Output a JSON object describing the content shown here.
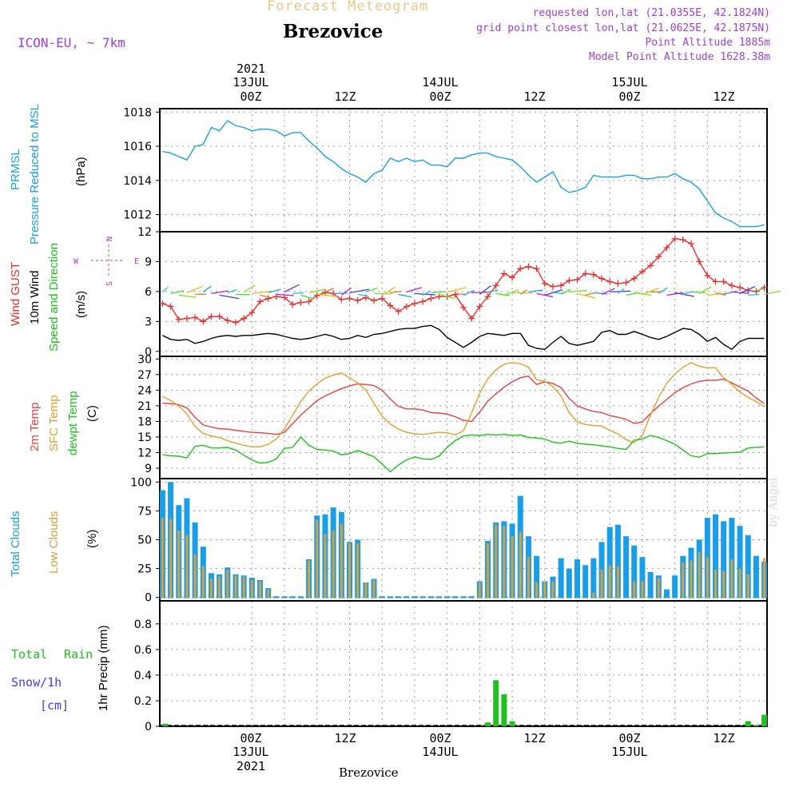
{
  "header": {
    "title": "Forecast Meteogram",
    "place": "Brezovice",
    "model": "ICON-EU, ~ 7km",
    "requested": "requested lon,lat (21.0355E, 42.1824N)",
    "grid": "grid point closest lon,lat (21.0625E, 42.1875N)",
    "altitude": "Point Altitude 1885m",
    "model_altitude": "Model Point Altitude 1628.38m"
  },
  "footer": {
    "place": "Brezovice",
    "credit": "by Angel"
  },
  "time_axis": {
    "labels": [
      "00Z",
      "12Z",
      "00Z",
      "12Z",
      "00Z",
      "12Z"
    ],
    "dates": [
      "13JUL",
      "14JUL",
      "15JUL"
    ],
    "year": "2021"
  },
  "panel_labels": {
    "p1": [
      "PRMSL",
      "Pressure Reduced to MSL",
      "(hPa)"
    ],
    "p2": [
      "Wind GUST",
      "10m Wind",
      "Speed and Direction",
      "(m/s)"
    ],
    "p2_compass": {
      "n": "N",
      "s": "S",
      "e": "E",
      "w": "W"
    },
    "p3": [
      "2m Temp",
      "SFC Temp",
      "dewpt Temp",
      "(C)"
    ],
    "p4": [
      "Total Clouds",
      "Low Clouds",
      "(%)"
    ],
    "p5": [
      "Total",
      "Rain",
      "Snow/1h",
      "[cm]",
      "1hr Precip (mm)"
    ]
  },
  "colors": {
    "pressure": "#1aa0e8",
    "gust": "#e83030",
    "wind": "#000000",
    "temp2m": "#e84040",
    "sfctemp": "#e0a030",
    "dewpt": "#20c020",
    "total_clouds": "#1a9ee8",
    "low_clouds": "#d4a040",
    "rain": "#20c020",
    "snow": "#4040e0",
    "label_purple": "#a040d0"
  },
  "chart_data": [
    {
      "type": "line",
      "title": "",
      "ylabel": "PRMSL Pressure Reduced to MSL (hPa)",
      "ylim": [
        1011,
        1018.2
      ],
      "yticks": [
        1012,
        1014,
        1016,
        1018
      ],
      "grid": true,
      "x": [
        -33,
        -30,
        -27,
        -24,
        -21,
        -18,
        -15,
        -12,
        -9,
        -6,
        -3,
        0,
        3,
        6,
        9,
        12,
        15,
        18,
        21,
        24,
        27,
        30,
        33,
        36,
        39,
        42,
        45,
        48,
        51,
        54,
        57,
        60,
        63,
        66,
        69,
        72,
        75,
        78,
        81,
        84,
        87,
        90,
        93,
        96,
        99,
        102,
        105,
        108,
        111,
        114,
        117,
        120,
        123,
        126,
        129,
        132,
        135,
        138,
        141,
        144,
        147,
        150,
        153,
        156,
        159,
        162,
        165,
        168,
        171,
        174,
        177,
        180,
        183,
        186,
        189
      ],
      "series": [
        {
          "name": "PRMSL",
          "values": [
            1015.7,
            1015.6,
            1015.4,
            1015.2,
            1016.0,
            1016.1,
            1017.1,
            1016.9,
            1017.5,
            1017.2,
            1017.1,
            1016.9,
            1017.0,
            1017.0,
            1016.9,
            1016.6,
            1016.8,
            1016.8,
            1016.3,
            1015.9,
            1015.4,
            1015.1,
            1014.7,
            1014.4,
            1014.2,
            1013.9,
            1014.4,
            1014.6,
            1015.3,
            1015.1,
            1015.3,
            1015.1,
            1015.2,
            1014.9,
            1014.9,
            1014.8,
            1015.3,
            1015.3,
            1015.5,
            1015.6,
            1015.6,
            1015.4,
            1015.3,
            1015.2,
            1014.8,
            1014.3,
            1013.9,
            1014.2,
            1014.5,
            1013.6,
            1013.3,
            1013.4,
            1013.6,
            1014.3,
            1014.2,
            1014.2,
            1014.2,
            1014.3,
            1014.3,
            1014.1,
            1014.1,
            1014.2,
            1014.2,
            1014.4,
            1014.1,
            1013.9,
            1013.5,
            1012.8,
            1012.1,
            1011.8,
            1011.6,
            1011.3,
            1011.3,
            1011.3,
            1011.4
          ]
        }
      ]
    },
    {
      "type": "line",
      "title": "",
      "ylabel": "Wind GUST / 10m Wind Speed and Direction (m/s)",
      "ylim": [
        -0.5,
        12
      ],
      "yticks": [
        0,
        3,
        6,
        9,
        12
      ],
      "grid": true,
      "x": [
        -33,
        -30,
        -27,
        -24,
        -21,
        -18,
        -15,
        -12,
        -9,
        -6,
        -3,
        0,
        3,
        6,
        9,
        12,
        15,
        18,
        21,
        24,
        27,
        30,
        33,
        36,
        39,
        42,
        45,
        48,
        51,
        54,
        57,
        60,
        63,
        66,
        69,
        72,
        75,
        78,
        81,
        84,
        87,
        90,
        93,
        96,
        99,
        102,
        105,
        108,
        111,
        114,
        117,
        120,
        123,
        126,
        129,
        132,
        135,
        138,
        141,
        144,
        147,
        150,
        153,
        156,
        159,
        162,
        165,
        168,
        171,
        174,
        177,
        180,
        183,
        186,
        189
      ],
      "series": [
        {
          "name": "Wind GUST",
          "values": [
            4.8,
            4.5,
            3.2,
            3.3,
            3.4,
            3.0,
            3.5,
            3.5,
            3.1,
            2.9,
            3.3,
            3.9,
            5.0,
            5.3,
            5.5,
            5.4,
            4.7,
            4.9,
            5.0,
            5.6,
            5.9,
            5.8,
            5.2,
            5.3,
            5.1,
            5.4,
            5.1,
            5.3,
            4.6,
            4.0,
            4.5,
            4.8,
            5.0,
            5.3,
            5.5,
            5.5,
            5.7,
            4.4,
            3.3,
            4.5,
            5.5,
            6.6,
            7.8,
            7.4,
            8.3,
            8.5,
            8.3,
            6.8,
            6.5,
            6.6,
            7.1,
            7.2,
            7.8,
            7.7,
            7.3,
            7.0,
            6.8,
            6.9,
            7.3,
            8.0,
            8.6,
            9.5,
            10.4,
            11.3,
            11.2,
            10.8,
            9.0,
            7.6,
            7.0,
            7.0,
            6.6,
            6.4,
            6.1,
            6.0,
            6.4
          ]
        },
        {
          "name": "10m Wind",
          "values": [
            1.6,
            1.2,
            1.1,
            1.2,
            0.8,
            1.0,
            1.3,
            1.5,
            1.6,
            1.5,
            1.6,
            1.6,
            1.7,
            1.8,
            1.7,
            1.5,
            1.3,
            1.2,
            1.3,
            1.5,
            1.7,
            1.5,
            1.2,
            1.3,
            1.6,
            1.4,
            1.7,
            1.8,
            2.0,
            2.2,
            2.3,
            2.3,
            2.5,
            2.6,
            2.2,
            1.4,
            0.9,
            0.4,
            0.9,
            1.5,
            1.8,
            1.7,
            1.6,
            1.8,
            1.8,
            0.6,
            0.3,
            0.2,
            0.9,
            1.5,
            0.8,
            0.6,
            0.8,
            1.0,
            1.9,
            2.1,
            1.7,
            1.7,
            2.0,
            1.7,
            1.4,
            1.2,
            1.5,
            1.9,
            2.3,
            2.2,
            1.7,
            1.0,
            1.4,
            0.7,
            0.2,
            1.0,
            1.3,
            1.3,
            1.3
          ]
        }
      ]
    },
    {
      "type": "line",
      "title": "",
      "ylabel": "2m Temp / SFC Temp / dewpt Temp (C)",
      "ylim": [
        7,
        30.5
      ],
      "yticks": [
        9,
        12,
        15,
        18,
        21,
        24,
        27,
        30
      ],
      "grid": true,
      "x": [
        -33,
        -30,
        -27,
        -24,
        -21,
        -18,
        -15,
        -12,
        -9,
        -6,
        -3,
        0,
        3,
        6,
        9,
        12,
        15,
        18,
        21,
        24,
        27,
        30,
        33,
        36,
        39,
        42,
        45,
        48,
        51,
        54,
        57,
        60,
        63,
        66,
        69,
        72,
        75,
        78,
        81,
        84,
        87,
        90,
        93,
        96,
        99,
        102,
        105,
        108,
        111,
        114,
        117,
        120,
        123,
        126,
        129,
        132,
        135,
        138,
        141,
        144,
        147,
        150,
        153,
        156,
        159,
        162,
        165,
        168,
        171,
        174,
        177,
        180,
        183,
        186,
        189
      ],
      "series": [
        {
          "name": "2m Temp",
          "values": [
            21.5,
            21.4,
            21.2,
            20.6,
            18.8,
            17.3,
            16.9,
            16.6,
            16.5,
            16.3,
            16.1,
            15.9,
            15.8,
            15.7,
            15.5,
            15.9,
            17.6,
            19.2,
            20.6,
            22.0,
            22.9,
            23.6,
            24.3,
            24.8,
            25.2,
            25.1,
            24.9,
            24.0,
            22.3,
            20.9,
            20.4,
            20.4,
            20.2,
            19.7,
            19.6,
            19.4,
            18.9,
            18.2,
            18.0,
            19.8,
            21.9,
            23.3,
            24.6,
            25.6,
            26.4,
            26.7,
            25.1,
            25.6,
            25.3,
            24.5,
            22.4,
            21.0,
            20.4,
            19.9,
            19.7,
            19.1,
            18.8,
            18.4,
            17.6,
            17.9,
            19.5,
            20.9,
            22.2,
            23.5,
            24.5,
            25.2,
            25.7,
            25.9,
            25.9,
            26.1,
            25.4,
            24.6,
            23.8,
            22.5,
            21.4
          ]
        },
        {
          "name": "SFC Temp",
          "values": [
            22.8,
            22.0,
            21.0,
            19.4,
            17.0,
            15.7,
            15.2,
            14.9,
            14.3,
            13.8,
            13.4,
            13.1,
            13.1,
            13.6,
            14.6,
            16.6,
            19.2,
            21.8,
            23.8,
            25.2,
            26.3,
            26.9,
            27.3,
            26.4,
            25.4,
            24.0,
            21.5,
            19.0,
            17.5,
            16.5,
            15.9,
            15.6,
            15.5,
            15.7,
            15.9,
            15.8,
            15.4,
            16.2,
            19.6,
            23.4,
            26.2,
            27.9,
            29.0,
            29.3,
            29.1,
            28.4,
            26.0,
            25.7,
            24.7,
            22.9,
            19.7,
            17.9,
            17.4,
            17.2,
            17.1,
            16.3,
            15.6,
            14.5,
            13.9,
            15.3,
            19.2,
            22.6,
            25.3,
            27.1,
            28.4,
            29.3,
            28.6,
            28.3,
            28.3,
            26.4,
            25.1,
            23.6,
            22.6,
            21.8,
            20.8
          ]
        },
        {
          "name": "dewpt Temp",
          "values": [
            11.6,
            11.4,
            11.3,
            11.0,
            13.2,
            13.4,
            12.9,
            12.9,
            13.0,
            12.5,
            11.5,
            10.6,
            10.0,
            10.1,
            10.8,
            12.8,
            13.0,
            15.0,
            13.4,
            12.6,
            12.5,
            12.3,
            11.6,
            11.8,
            12.4,
            11.8,
            11.2,
            9.8,
            8.3,
            9.6,
            10.6,
            11.2,
            10.8,
            10.7,
            11.3,
            13.0,
            14.3,
            15.2,
            15.4,
            15.3,
            15.5,
            15.4,
            15.5,
            15.3,
            15.4,
            14.9,
            14.8,
            14.6,
            14.0,
            13.8,
            14.2,
            13.8,
            13.6,
            13.5,
            13.3,
            13.1,
            12.8,
            12.6,
            14.4,
            14.6,
            15.3,
            14.9,
            14.3,
            13.6,
            12.5,
            11.4,
            11.1,
            11.8,
            11.8,
            11.9,
            12.0,
            12.1,
            12.9,
            13.0,
            13.1
          ]
        }
      ]
    },
    {
      "type": "bar",
      "title": "",
      "ylabel": "Total Clouds / Low Clouds (%)",
      "ylim": [
        -3,
        103
      ],
      "yticks": [
        0,
        25,
        50,
        75,
        100
      ],
      "grid": true,
      "x": [
        -33,
        -30,
        -27,
        -24,
        -21,
        -18,
        -15,
        -12,
        -9,
        -6,
        -3,
        0,
        3,
        6,
        9,
        12,
        15,
        18,
        21,
        24,
        27,
        30,
        33,
        36,
        39,
        42,
        45,
        48,
        51,
        54,
        57,
        60,
        63,
        66,
        69,
        72,
        75,
        78,
        81,
        84,
        87,
        90,
        93,
        96,
        99,
        102,
        105,
        108,
        111,
        114,
        117,
        120,
        123,
        126,
        129,
        132,
        135,
        138,
        141,
        144,
        147,
        150,
        153,
        156,
        159,
        162,
        165,
        168,
        171,
        174,
        177,
        180,
        183,
        186,
        189
      ],
      "series": [
        {
          "name": "Total Clouds",
          "values": [
            93,
            100,
            80,
            86,
            65,
            44,
            21,
            20,
            26,
            20,
            19,
            17,
            15,
            8,
            1,
            1,
            1,
            1,
            33,
            71,
            72,
            78,
            74,
            48,
            50,
            13,
            16,
            1,
            1,
            1,
            1,
            1,
            1,
            1,
            1,
            1,
            1,
            1,
            1,
            14,
            49,
            65,
            66,
            64,
            88,
            53,
            36,
            14,
            18,
            34,
            25,
            33,
            28,
            34,
            48,
            61,
            63,
            53,
            45,
            35,
            22,
            19,
            7,
            19,
            36,
            43,
            50,
            69,
            72,
            66,
            69,
            62,
            54,
            36,
            31
          ]
        },
        {
          "name": "Low Clouds",
          "values": [
            69,
            68,
            58,
            54,
            37,
            27,
            16,
            18,
            24,
            19,
            18,
            15,
            14,
            7,
            0,
            0,
            0,
            0,
            32,
            67,
            55,
            58,
            64,
            47,
            47,
            13,
            15,
            0,
            0,
            0,
            0,
            0,
            0,
            0,
            0,
            0,
            0,
            0,
            0,
            13,
            47,
            63,
            62,
            53,
            57,
            35,
            13,
            14,
            14,
            0,
            0,
            0,
            0,
            4,
            24,
            28,
            27,
            0,
            14,
            14,
            0,
            17,
            0,
            0,
            30,
            32,
            39,
            35,
            24,
            23,
            33,
            25,
            20,
            0,
            34
          ]
        }
      ]
    },
    {
      "type": "bar",
      "title": "",
      "ylabel": "1hr Precip (mm)",
      "ylim": [
        0,
        0.98
      ],
      "yticks": [
        0,
        0.2,
        0.4,
        0.6,
        0.8
      ],
      "grid": true,
      "x": [
        -32,
        87,
        90,
        93,
        96,
        183,
        186,
        189
      ],
      "series": [
        {
          "name": "Rain",
          "values": [
            0.02,
            0.03,
            0.36,
            0.25,
            0.04,
            0.04,
            0.01,
            0.09
          ]
        }
      ]
    }
  ]
}
